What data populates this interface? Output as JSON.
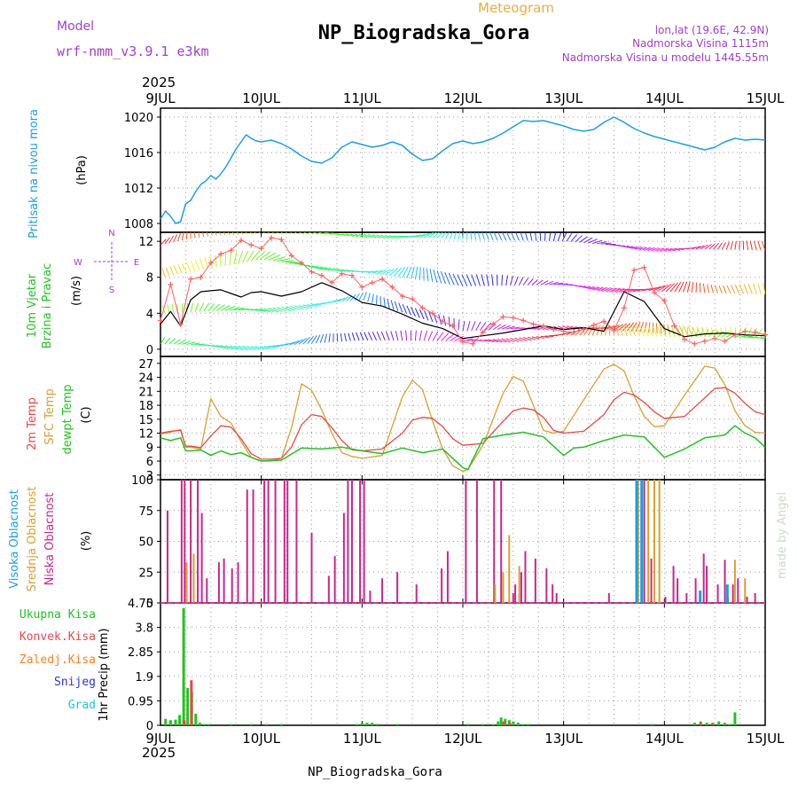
{
  "header": {
    "model_label": "Model",
    "model_name": "wrf-nmm_v3.9.1 e3km",
    "subtitle": "Meteogram",
    "title": "NP_Biogradska_Gora",
    "lonlat": "lon,lat (19.6E, 42.9N)",
    "altitude": "Nadmorska Visina 1115m",
    "model_altitude": "Nadmorska Visina u modelu 1445.55m",
    "year": "2025",
    "watermark": "made by Angel",
    "footer": "NP_Biogradska_Gora"
  },
  "colors": {
    "pressure": "#1aa0e6",
    "temp2m": "#e84848",
    "sfc": "#d8a030",
    "dewpt": "#22c322",
    "low_cloud": "#c8288c",
    "mid_cloud": "#d8a030",
    "high_cloud": "#18a0e0",
    "precip_total": "#22c322",
    "precip_conv": "#e84848",
    "precip_frz": "#ff7e1e",
    "precip_snow": "#3030e0",
    "precip_hail": "#20c8c8",
    "title_purple": "#a040d0",
    "orange": "#e6b040",
    "gust": "#ff6060"
  },
  "chart_data": [
    {
      "type": "line",
      "panel": "pressure",
      "ylabel": "Pritisak na nivou mora",
      "unit": "(hPa)",
      "ylim": [
        1007,
        1021
      ],
      "yticks": [
        1008,
        1012,
        1016,
        1020
      ],
      "xlabel": "days",
      "x_tick_labels": [
        "9JUL",
        "10JUL",
        "11JUL",
        "12JUL",
        "13JUL",
        "14JUL",
        "15JUL"
      ],
      "series": [
        {
          "name": "MSLP",
          "x": [
            0,
            0.05,
            0.1,
            0.15,
            0.2,
            0.25,
            0.3,
            0.35,
            0.4,
            0.45,
            0.5,
            0.55,
            0.6,
            0.65,
            0.7,
            0.75,
            0.8,
            0.85,
            0.9,
            0.95,
            1.0,
            1.1,
            1.2,
            1.3,
            1.4,
            1.5,
            1.6,
            1.7,
            1.8,
            1.9,
            2.0,
            2.1,
            2.2,
            2.3,
            2.4,
            2.5,
            2.6,
            2.7,
            2.8,
            2.9,
            3.0,
            3.1,
            3.2,
            3.3,
            3.4,
            3.5,
            3.6,
            3.7,
            3.8,
            3.9,
            4.0,
            4.1,
            4.2,
            4.3,
            4.4,
            4.5,
            4.6,
            4.7,
            4.8,
            4.9,
            5.0,
            5.1,
            5.2,
            5.3,
            5.4,
            5.5,
            5.6,
            5.7,
            5.8,
            5.9,
            6.0
          ],
          "values": [
            1008.5,
            1009.4,
            1008.8,
            1008.0,
            1008.2,
            1010.2,
            1010.6,
            1011.6,
            1012.4,
            1012.8,
            1013.4,
            1013.0,
            1013.6,
            1014.4,
            1015.4,
            1016.4,
            1017.2,
            1018.0,
            1017.6,
            1017.3,
            1017.2,
            1017.4,
            1017.0,
            1016.4,
            1015.6,
            1015.0,
            1014.8,
            1015.4,
            1016.6,
            1017.2,
            1016.9,
            1016.6,
            1016.8,
            1017.2,
            1016.8,
            1015.8,
            1015.1,
            1015.3,
            1016.2,
            1017.0,
            1017.3,
            1017.0,
            1017.2,
            1017.6,
            1018.2,
            1018.9,
            1019.6,
            1019.5,
            1019.6,
            1019.3,
            1019.0,
            1018.6,
            1018.4,
            1018.6,
            1019.4,
            1020.0,
            1019.4,
            1018.7,
            1018.2,
            1017.8,
            1017.5,
            1017.2,
            1016.9,
            1016.6,
            1016.3,
            1016.6,
            1017.2,
            1017.6,
            1017.4,
            1017.5,
            1017.4
          ]
        }
      ]
    },
    {
      "type": "line",
      "panel": "wind",
      "ylabel": "10m Vjetar Brzina i Pravac",
      "unit": "(m/s)",
      "compass_legend": [
        "N",
        "W",
        "E",
        "S"
      ],
      "ylim": [
        -0.8,
        13
      ],
      "yticks": [
        0,
        4,
        8,
        12
      ],
      "series": [
        {
          "name": "Wind speed",
          "x": [
            0,
            0.1,
            0.2,
            0.3,
            0.4,
            0.5,
            0.6,
            0.7,
            0.8,
            0.9,
            1.0,
            1.2,
            1.4,
            1.6,
            1.8,
            2.0,
            2.2,
            2.4,
            2.6,
            2.8,
            3.0,
            3.2,
            3.4,
            3.6,
            3.8,
            4.0,
            4.2,
            4.4,
            4.6,
            4.8,
            5.0,
            5.2,
            5.4,
            5.6,
            5.8,
            6.0
          ],
          "values": [
            2.8,
            4.2,
            2.6,
            5.5,
            6.4,
            6.5,
            6.6,
            6.2,
            5.8,
            6.3,
            6.4,
            5.9,
            6.4,
            7.4,
            6.5,
            5.2,
            4.8,
            3.9,
            2.9,
            2.3,
            1.2,
            1.5,
            1.8,
            2.2,
            2.6,
            2.2,
            2.4,
            2.0,
            6.4,
            5.3,
            2.3,
            1.4,
            1.7,
            1.8,
            1.6,
            1.5
          ]
        },
        {
          "name": "Wind gust",
          "x": [
            0,
            0.1,
            0.2,
            0.3,
            0.4,
            0.5,
            0.6,
            0.7,
            0.8,
            0.9,
            1.0,
            1.1,
            1.2,
            1.3,
            1.4,
            1.5,
            1.6,
            1.7,
            1.8,
            1.9,
            2.0,
            2.1,
            2.2,
            2.3,
            2.4,
            2.5,
            2.6,
            2.7,
            2.8,
            2.9,
            3.0,
            3.1,
            3.2,
            3.3,
            3.4,
            3.5,
            3.6,
            3.7,
            3.8,
            3.9,
            4.0,
            4.1,
            4.2,
            4.3,
            4.4,
            4.5,
            4.6,
            4.7,
            4.8,
            4.9,
            5.0,
            5.1,
            5.2,
            5.3,
            5.4,
            5.5,
            5.6,
            5.7,
            5.8,
            5.9,
            6.0
          ],
          "values": [
            3.2,
            7.2,
            2.8,
            7.8,
            8.0,
            9.6,
            10.6,
            11.0,
            12.1,
            11.6,
            11.2,
            12.4,
            12.2,
            10.4,
            9.6,
            8.6,
            8.2,
            7.4,
            8.4,
            8.2,
            6.9,
            7.4,
            7.8,
            6.9,
            5.9,
            5.6,
            4.6,
            4.0,
            3.1,
            2.6,
            0.8,
            0.6,
            1.9,
            2.8,
            3.6,
            3.5,
            3.2,
            2.8,
            2.6,
            2.2,
            2.0,
            1.9,
            2.2,
            2.7,
            3.1,
            2.1,
            4.6,
            8.8,
            9.1,
            6.3,
            5.4,
            2.6,
            1.1,
            0.6,
            0.9,
            1.2,
            0.9,
            1.6,
            2.0,
            1.9,
            1.6
          ]
        }
      ]
    },
    {
      "type": "line",
      "panel": "temperature",
      "ylabel": "2m Temp / SFC Temp / dewpt Temp",
      "labels": [
        "2m Temp",
        "SFC Temp",
        "dewpt Temp"
      ],
      "unit": "(C)",
      "ylim": [
        2,
        28.5
      ],
      "yticks": [
        3,
        6,
        9,
        12,
        15,
        18,
        21,
        24,
        27
      ],
      "series": [
        {
          "name": "2m Temp",
          "x": [
            0,
            0.1,
            0.2,
            0.25,
            0.3,
            0.4,
            0.5,
            0.6,
            0.7,
            0.8,
            0.9,
            1.0,
            1.1,
            1.2,
            1.3,
            1.4,
            1.5,
            1.6,
            1.7,
            1.8,
            1.9,
            2.0,
            2.2,
            2.4,
            2.5,
            2.6,
            2.7,
            2.8,
            2.9,
            3.0,
            3.2,
            3.4,
            3.5,
            3.6,
            3.7,
            3.8,
            3.9,
            4.0,
            4.2,
            4.4,
            4.5,
            4.6,
            4.7,
            4.8,
            4.9,
            5.0,
            5.2,
            5.4,
            5.5,
            5.6,
            5.7,
            5.8,
            5.9,
            6.0
          ],
          "values": [
            12.0,
            12.4,
            12.6,
            9.2,
            9.2,
            8.9,
            11.4,
            13.6,
            13.3,
            10.8,
            7.6,
            6.4,
            6.4,
            6.6,
            9.0,
            13.8,
            16.0,
            15.6,
            13.2,
            10.4,
            8.4,
            8.2,
            8.6,
            12.0,
            14.8,
            15.4,
            15.2,
            13.4,
            10.8,
            9.4,
            9.8,
            14.6,
            16.8,
            17.4,
            17.0,
            15.4,
            12.6,
            12.0,
            12.4,
            16.0,
            19.2,
            20.8,
            20.2,
            18.6,
            16.6,
            15.2,
            15.6,
            19.6,
            21.6,
            21.8,
            20.6,
            18.4,
            16.6,
            16.0
          ]
        },
        {
          "name": "SFC Temp",
          "x": [
            0,
            0.1,
            0.2,
            0.25,
            0.3,
            0.4,
            0.5,
            0.6,
            0.7,
            0.8,
            0.9,
            1.0,
            1.1,
            1.2,
            1.3,
            1.4,
            1.5,
            1.6,
            1.7,
            1.8,
            1.9,
            2.0,
            2.2,
            2.4,
            2.5,
            2.6,
            2.7,
            2.8,
            2.9,
            3.0,
            3.05,
            3.2,
            3.4,
            3.5,
            3.6,
            3.7,
            3.8,
            3.9,
            4.0,
            4.2,
            4.4,
            4.5,
            4.6,
            4.7,
            4.8,
            4.9,
            5.0,
            5.2,
            5.4,
            5.5,
            5.6,
            5.7,
            5.8,
            5.9,
            6.0
          ],
          "values": [
            11.8,
            12.2,
            12.8,
            9.0,
            9.0,
            8.6,
            19.4,
            15.6,
            14.2,
            10.2,
            6.8,
            6.0,
            6.0,
            6.6,
            13.2,
            22.6,
            21.2,
            17.0,
            12.0,
            7.8,
            7.0,
            6.6,
            7.2,
            19.8,
            23.4,
            21.4,
            14.6,
            8.6,
            5.0,
            3.8,
            4.2,
            9.4,
            20.6,
            24.2,
            23.2,
            18.0,
            12.6,
            12.0,
            12.4,
            19.2,
            25.8,
            26.8,
            25.4,
            20.0,
            15.6,
            13.4,
            13.6,
            20.2,
            26.4,
            26.0,
            22.4,
            16.8,
            13.6,
            12.2,
            12.0
          ]
        },
        {
          "name": "dewpt Temp",
          "x": [
            0,
            0.1,
            0.2,
            0.25,
            0.3,
            0.4,
            0.5,
            0.6,
            0.7,
            0.8,
            0.9,
            1.0,
            1.2,
            1.4,
            1.6,
            1.8,
            2.0,
            2.2,
            2.4,
            2.6,
            2.8,
            3.0,
            3.05,
            3.2,
            3.4,
            3.6,
            3.8,
            4.0,
            4.1,
            4.2,
            4.4,
            4.6,
            4.8,
            5.0,
            5.2,
            5.4,
            5.6,
            5.7,
            5.8,
            5.9,
            6.0
          ],
          "values": [
            11.0,
            10.4,
            11.0,
            8.2,
            8.2,
            8.4,
            7.2,
            8.2,
            7.4,
            7.8,
            6.8,
            6.0,
            6.2,
            8.8,
            8.6,
            9.0,
            8.2,
            7.6,
            8.8,
            7.8,
            8.6,
            4.6,
            4.2,
            10.8,
            11.6,
            12.2,
            11.2,
            7.2,
            8.8,
            9.0,
            10.4,
            11.6,
            11.2,
            6.8,
            8.6,
            11.0,
            11.6,
            13.6,
            12.0,
            11.0,
            9.0
          ]
        }
      ]
    },
    {
      "type": "bar",
      "panel": "clouds",
      "labels": [
        "Visoka Oblacnost",
        "Srednja Oblacnost",
        "Niska Oblacnost"
      ],
      "unit": "(%)",
      "ylim": [
        0,
        100
      ],
      "yticks": [
        0,
        25,
        50,
        75,
        100
      ],
      "series": [
        {
          "name": "Niska Oblacnost",
          "x": [
            0.07,
            0.21,
            0.24,
            0.3,
            0.37,
            0.41,
            0.46,
            0.58,
            0.63,
            0.71,
            0.77,
            0.86,
            0.92,
            1.03,
            1.07,
            1.14,
            1.23,
            1.26,
            1.35,
            1.5,
            1.67,
            1.73,
            1.82,
            1.86,
            1.9,
            1.98,
            2.02,
            2.08,
            2.2,
            2.35,
            2.54,
            2.79,
            2.85,
            3.03,
            3.14,
            3.31,
            3.38,
            3.5,
            3.52,
            3.58,
            3.62,
            3.72,
            3.83,
            3.89,
            3.93,
            4.45,
            4.8,
            4.87,
            5.01,
            5.09,
            5.13,
            5.22,
            5.31,
            5.39,
            5.42,
            5.53,
            5.6,
            5.63,
            5.68,
            5.73,
            5.82,
            5.9
          ],
          "values": [
            75,
            100,
            100,
            100,
            100,
            73,
            20,
            33,
            36,
            28,
            33,
            92,
            92,
            100,
            100,
            100,
            100,
            100,
            100,
            57,
            22,
            38,
            73,
            100,
            100,
            100,
            100,
            10,
            20,
            25,
            15,
            28,
            42,
            100,
            100,
            100,
            100,
            8,
            15,
            25,
            42,
            36,
            28,
            15,
            8,
            8,
            100,
            36,
            5,
            30,
            20,
            8,
            20,
            40,
            30,
            15,
            35,
            5,
            15,
            20,
            5,
            8
          ]
        },
        {
          "name": "Srednja Oblacnost",
          "x": [
            0.26,
            0.33,
            3.32,
            3.4,
            3.46,
            3.56,
            4.74,
            4.84,
            4.9,
            4.95,
            5.7,
            5.8
          ],
          "values": [
            33,
            40,
            15,
            25,
            55,
            30,
            100,
            100,
            100,
            100,
            35,
            20
          ]
        },
        {
          "name": "Visoka Oblacnost",
          "x": [
            4.72,
            4.77,
            5.35,
            5.62
          ],
          "values": [
            100,
            100,
            10,
            15
          ]
        }
      ]
    },
    {
      "type": "bar",
      "panel": "precipitation",
      "labels": [
        "Ukupna Kisa",
        "Konvek.Kisa",
        "Zaledj.Kisa",
        "Snijeg",
        "Grad"
      ],
      "ylabel": "1hr Precip",
      "unit": "(mm)",
      "ylim": [
        0,
        4.75
      ],
      "yticks": [
        0,
        0.95,
        1.9,
        2.85,
        3.8,
        4.75
      ],
      "series": [
        {
          "name": "Ukupna Kisa",
          "x": [
            0.05,
            0.1,
            0.15,
            0.19,
            0.23,
            0.27,
            0.31,
            0.35,
            0.39,
            0.44,
            0.48,
            0.7,
            0.9,
            1.05,
            1.2,
            1.95,
            2.0,
            2.05,
            2.1,
            2.15,
            2.35,
            3.05,
            3.2,
            3.3,
            3.35,
            3.38,
            3.42,
            3.46,
            3.5,
            3.55,
            3.6,
            3.65,
            4.88,
            5.3,
            5.36,
            5.42,
            5.48,
            5.54,
            5.6,
            5.65,
            5.7
          ],
          "values": [
            0.25,
            0.2,
            0.22,
            0.4,
            4.55,
            1.45,
            1.3,
            0.45,
            0.1,
            0.05,
            0.05,
            0.05,
            0.05,
            0.05,
            0.05,
            0.05,
            0.1,
            0.1,
            0.1,
            0.05,
            0.05,
            0.05,
            0.05,
            0.05,
            0.15,
            0.3,
            0.25,
            0.2,
            0.15,
            0.1,
            0.05,
            0.05,
            0.05,
            0.1,
            0.15,
            0.1,
            0.1,
            0.15,
            0.1,
            0.05,
            0.5
          ]
        },
        {
          "name": "Konvek.Kisa",
          "x": [
            0.21,
            0.28,
            3.38,
            3.44,
            5.33,
            5.45
          ],
          "values": [
            0.2,
            1.75,
            0.15,
            0.1,
            0.08,
            0.08
          ]
        }
      ]
    }
  ]
}
